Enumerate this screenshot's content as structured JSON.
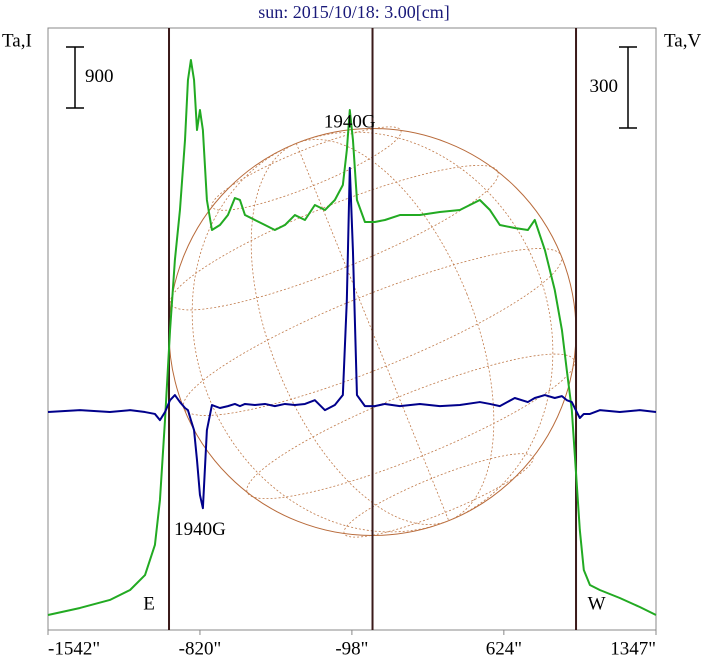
{
  "chart_data": {
    "type": "line",
    "title": "sun: 2015/10/18: 3.00[cm]",
    "y_label": "Ta,I",
    "y2_label": "Ta,V",
    "x": [
      -1542,
      -1390,
      -1248,
      -1152,
      -1081,
      -1034,
      -1010,
      -986,
      -962,
      -939,
      -915,
      -891,
      -877,
      -863,
      -848,
      -834,
      -820,
      -806,
      -787,
      -763,
      -725,
      -687,
      -654,
      -630,
      -606,
      -559,
      -511,
      -464,
      -416,
      -369,
      -321,
      -274,
      -226,
      -179,
      -141,
      -122,
      -108,
      -93,
      -74,
      -36,
      11,
      59,
      130,
      225,
      320,
      415,
      510,
      558,
      605,
      676,
      738,
      771,
      819,
      866,
      900,
      923,
      947,
      966,
      985,
      1004,
      1033,
      1080,
      1175,
      1270,
      1347
    ],
    "series": [
      {
        "name": "Ta,I",
        "color": "#22aa22",
        "axis": "y",
        "values": [
          221,
          325,
          443,
          590,
          811,
          1254,
          1918,
          3098,
          4425,
          5458,
          6195,
          7228,
          8113,
          8408,
          8113,
          7375,
          7670,
          7375,
          6343,
          5900,
          5974,
          6121,
          6372,
          6343,
          6121,
          6048,
          5974,
          5900,
          5974,
          6121,
          6048,
          6269,
          6195,
          6343,
          6564,
          7080,
          7670,
          7228,
          6343,
          6018,
          6018,
          6048,
          6121,
          6121,
          6166,
          6195,
          6343,
          6195,
          5974,
          5930,
          5900,
          6048,
          5605,
          5015,
          4425,
          3835,
          3245,
          2360,
          1475,
          885,
          664,
          590,
          472,
          339,
          221
        ]
      },
      {
        "name": "Ta,V",
        "color": "#00008b",
        "axis": "y2",
        "values": [
          0,
          7,
          0,
          7,
          0,
          -7,
          -30,
          0,
          44,
          63,
          37,
          15,
          7,
          -30,
          -67,
          -178,
          -307,
          -356,
          -67,
          26,
          15,
          22,
          30,
          22,
          30,
          26,
          30,
          22,
          30,
          26,
          30,
          44,
          7,
          26,
          63,
          415,
          904,
          596,
          63,
          22,
          22,
          30,
          22,
          30,
          22,
          26,
          37,
          30,
          22,
          52,
          37,
          52,
          63,
          52,
          59,
          44,
          37,
          7,
          -22,
          -7,
          -7,
          7,
          0,
          7,
          0
        ]
      }
    ],
    "xlim": [
      -1542,
      1347
    ],
    "xticks": [
      {
        "value": -1542,
        "label": "-1542\""
      },
      {
        "value": -820,
        "label": "-820\""
      },
      {
        "value": -98,
        "label": "-98\""
      },
      {
        "value": 624,
        "label": "624\""
      },
      {
        "value": 1347,
        "label": "1347\""
      }
    ],
    "ylim": [
      0,
      8880
    ],
    "y2lim": [
      -807,
      1422
    ],
    "vlines": [
      -967,
      0,
      967
    ],
    "scale_bars": [
      {
        "value": 900,
        "axis": "y"
      },
      {
        "value": 300,
        "axis": "y2"
      }
    ],
    "annotations": [
      {
        "text": "1940G",
        "x": -108,
        "y2": 1070
      },
      {
        "text": "1940G",
        "x": -820,
        "y2": -440
      },
      {
        "text": "E",
        "x": -1062,
        "y": 370
      },
      {
        "text": "W",
        "x": 1065,
        "y": 370
      }
    ]
  }
}
